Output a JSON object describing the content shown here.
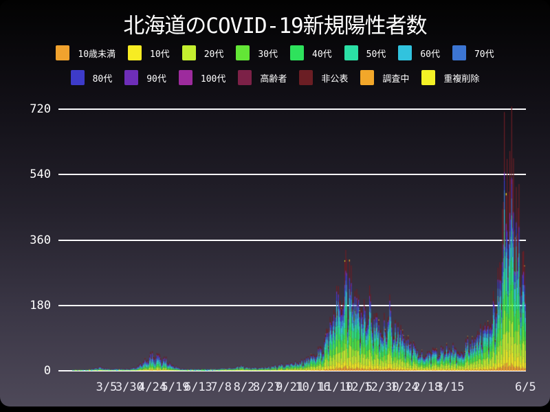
{
  "chart_data": {
    "type": "stacked-bar",
    "title": "北海道のCOVID-19新規陽性者数",
    "legend_position": "top",
    "grid": "horizontal-only",
    "colors": {
      "text": "#ffffff",
      "gridline": "#fbfbfd",
      "background_top": "#020202",
      "background_bottom": "#4e4959"
    },
    "y_axis": {
      "ticks": [
        0,
        180,
        360,
        540,
        720
      ],
      "ylim": [
        0,
        737
      ]
    },
    "x_axis": {
      "start_date": "2020-01-13",
      "end_date": "2021-06-05",
      "ticks": [
        {
          "label": "3/5",
          "date": "2020-03-05"
        },
        {
          "label": "3/30",
          "date": "2020-03-30"
        },
        {
          "label": "4/24",
          "date": "2020-04-24"
        },
        {
          "label": "5/19",
          "date": "2020-05-19"
        },
        {
          "label": "6/13",
          "date": "2020-06-13"
        },
        {
          "label": "7/8",
          "date": "2020-07-08"
        },
        {
          "label": "8/2",
          "date": "2020-08-02"
        },
        {
          "label": "8/27",
          "date": "2020-08-27"
        },
        {
          "label": "9/21",
          "date": "2020-09-21"
        },
        {
          "label": "10/16",
          "date": "2020-10-16"
        },
        {
          "label": "11/10",
          "date": "2020-11-10"
        },
        {
          "label": "12/5",
          "date": "2020-12-05"
        },
        {
          "label": "12/30",
          "date": "2020-12-30"
        },
        {
          "label": "1/24",
          "date": "2021-01-24"
        },
        {
          "label": "2/18",
          "date": "2021-02-18"
        },
        {
          "label": "3/15",
          "date": "2021-03-15"
        },
        {
          "label": "6/5",
          "date": "2021-06-05"
        }
      ]
    },
    "series": [
      {
        "key": "age-under10",
        "name": "10歳未満",
        "color": "#F0A22E"
      },
      {
        "key": "age-10s",
        "name": "10代",
        "color": "#F7EC23"
      },
      {
        "key": "age-20s",
        "name": "20代",
        "color": "#C4EF2F"
      },
      {
        "key": "age-30s",
        "name": "30代",
        "color": "#63E636"
      },
      {
        "key": "age-40s",
        "name": "40代",
        "color": "#2EE25C"
      },
      {
        "key": "age-50s",
        "name": "50代",
        "color": "#2BDFA5"
      },
      {
        "key": "age-60s",
        "name": "60代",
        "color": "#31C3DE"
      },
      {
        "key": "age-70s",
        "name": "70代",
        "color": "#3C75D2"
      },
      {
        "key": "age-80s",
        "name": "80代",
        "color": "#3D3BC9"
      },
      {
        "key": "age-90s",
        "name": "90代",
        "color": "#6E2EB8"
      },
      {
        "key": "age-100s",
        "name": "100代",
        "color": "#9D2B9D"
      },
      {
        "key": "elderly",
        "name": "高齢者",
        "color": "#7C2147"
      },
      {
        "key": "undisclosed",
        "name": "非公表",
        "color": "#6B1E24"
      },
      {
        "key": "investigating",
        "name": "調査中",
        "color": "#F2A72A"
      },
      {
        "key": "dedup-removed",
        "name": "重複削除",
        "color": "#F4F126"
      }
    ],
    "legend_rows": [
      8,
      7
    ],
    "share_profiles": {
      "early_cutoff": "2020-07-01",
      "early": [
        0.03,
        0.04,
        0.1,
        0.09,
        0.1,
        0.115,
        0.11,
        0.11,
        0.1,
        0.05,
        0.006,
        0.009,
        0.14,
        0,
        0
      ],
      "normal": [
        0.035,
        0.07,
        0.155,
        0.135,
        0.13,
        0.12,
        0.09,
        0.075,
        0.062,
        0.028,
        0.004,
        0.006,
        0.085,
        0,
        0
      ]
    },
    "totals_anchors": [
      [
        "2020-01-13",
        0
      ],
      [
        "2020-01-26",
        0
      ],
      [
        "2020-01-28",
        1
      ],
      [
        "2020-02-04",
        1
      ],
      [
        "2020-02-10",
        1
      ],
      [
        "2020-02-16",
        3
      ],
      [
        "2020-02-21",
        6
      ],
      [
        "2020-02-26",
        11
      ],
      [
        "2020-03-02",
        9
      ],
      [
        "2020-03-08",
        5
      ],
      [
        "2020-03-15",
        6
      ],
      [
        "2020-03-22",
        5
      ],
      [
        "2020-03-29",
        7
      ],
      [
        "2020-04-05",
        10
      ],
      [
        "2020-04-11",
        18
      ],
      [
        "2020-04-17",
        30
      ],
      [
        "2020-04-23",
        45
      ],
      [
        "2020-04-29",
        40
      ],
      [
        "2020-05-06",
        33
      ],
      [
        "2020-05-13",
        22
      ],
      [
        "2020-05-20",
        12
      ],
      [
        "2020-05-27",
        7
      ],
      [
        "2020-06-03",
        4
      ],
      [
        "2020-06-12",
        5
      ],
      [
        "2020-06-21",
        4
      ],
      [
        "2020-07-01",
        5
      ],
      [
        "2020-07-10",
        7
      ],
      [
        "2020-07-20",
        10
      ],
      [
        "2020-07-30",
        13
      ],
      [
        "2020-08-08",
        9
      ],
      [
        "2020-08-17",
        9
      ],
      [
        "2020-08-26",
        11
      ],
      [
        "2020-09-04",
        13
      ],
      [
        "2020-09-13",
        16
      ],
      [
        "2020-09-22",
        20
      ],
      [
        "2020-10-01",
        24
      ],
      [
        "2020-10-09",
        30
      ],
      [
        "2020-10-16",
        40
      ],
      [
        "2020-10-23",
        55
      ],
      [
        "2020-10-29",
        75
      ],
      [
        "2020-11-03",
        120
      ],
      [
        "2020-11-08",
        170
      ],
      [
        "2020-11-13",
        215
      ],
      [
        "2020-11-18",
        240
      ],
      [
        "2020-11-22",
        255
      ],
      [
        "2020-11-27",
        230
      ],
      [
        "2020-12-02",
        200
      ],
      [
        "2020-12-07",
        178
      ],
      [
        "2020-12-12",
        158
      ],
      [
        "2020-12-17",
        175
      ],
      [
        "2020-12-22",
        158
      ],
      [
        "2020-12-27",
        142
      ],
      [
        "2021-01-01",
        125
      ],
      [
        "2021-01-06",
        145
      ],
      [
        "2021-01-11",
        128
      ],
      [
        "2021-01-16",
        116
      ],
      [
        "2021-01-21",
        102
      ],
      [
        "2021-01-27",
        86
      ],
      [
        "2021-02-02",
        70
      ],
      [
        "2021-02-08",
        56
      ],
      [
        "2021-02-15",
        48
      ],
      [
        "2021-02-22",
        50
      ],
      [
        "2021-03-01",
        55
      ],
      [
        "2021-03-08",
        60
      ],
      [
        "2021-03-15",
        62
      ],
      [
        "2021-03-22",
        58
      ],
      [
        "2021-03-29",
        66
      ],
      [
        "2021-04-05",
        76
      ],
      [
        "2021-04-12",
        92
      ],
      [
        "2021-04-19",
        112
      ],
      [
        "2021-04-26",
        138
      ],
      [
        "2021-05-02",
        172
      ],
      [
        "2021-05-06",
        225
      ],
      [
        "2021-05-09",
        310
      ],
      [
        "2021-05-12",
        460
      ],
      [
        "2021-05-15",
        490
      ],
      [
        "2021-05-18",
        525
      ],
      [
        "2021-05-20",
        600
      ],
      [
        "2021-05-22",
        600
      ],
      [
        "2021-05-25",
        500
      ],
      [
        "2021-05-28",
        410
      ],
      [
        "2021-05-31",
        340
      ],
      [
        "2021-06-03",
        285
      ],
      [
        "2021-06-05",
        255
      ]
    ],
    "pinned_days": [
      [
        "2020-11-20",
        304
      ],
      [
        "2020-12-17",
        235
      ],
      [
        "2021-01-08",
        210
      ],
      [
        "2021-05-13",
        712
      ],
      [
        "2021-05-21",
        727
      ]
    ]
  }
}
